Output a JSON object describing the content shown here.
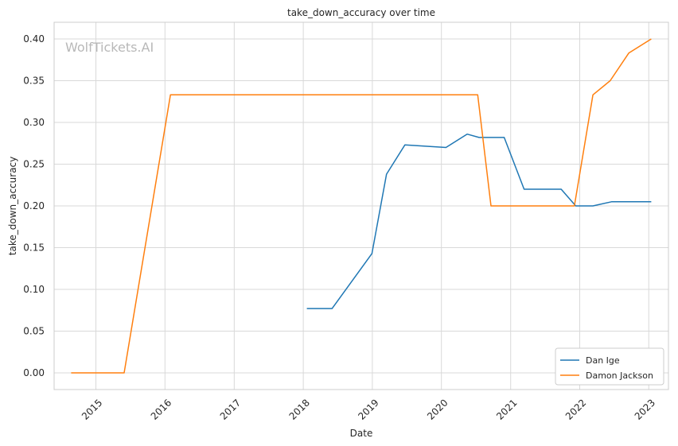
{
  "chart_data": {
    "type": "line",
    "title": "take_down_accuracy over time",
    "xlabel": "Date",
    "ylabel": "take_down_accuracy",
    "watermark": "WolfTickets.AI",
    "x_ticks": [
      "2015",
      "2016",
      "2017",
      "2018",
      "2019",
      "2020",
      "2021",
      "2022",
      "2023"
    ],
    "y_ticks": [
      "0.00",
      "0.05",
      "0.10",
      "0.15",
      "0.20",
      "0.25",
      "0.30",
      "0.35",
      "0.40"
    ],
    "xlim": [
      "2014-05-25",
      "2023-04-15"
    ],
    "ylim": [
      -0.02,
      0.42
    ],
    "grid": true,
    "legend_position": "lower-right",
    "series": [
      {
        "name": "Dan Ige",
        "color": "#1f77b4",
        "points": [
          {
            "x": "2018-01-20",
            "y": 0.077
          },
          {
            "x": "2018-06-02",
            "y": 0.077
          },
          {
            "x": "2018-12-30",
            "y": 0.143
          },
          {
            "x": "2019-03-17",
            "y": 0.238
          },
          {
            "x": "2019-06-22",
            "y": 0.273
          },
          {
            "x": "2020-01-25",
            "y": 0.27
          },
          {
            "x": "2020-05-16",
            "y": 0.286
          },
          {
            "x": "2020-07-18",
            "y": 0.282
          },
          {
            "x": "2020-11-28",
            "y": 0.282
          },
          {
            "x": "2021-03-13",
            "y": 0.22
          },
          {
            "x": "2021-09-25",
            "y": 0.22
          },
          {
            "x": "2021-12-11",
            "y": 0.2
          },
          {
            "x": "2022-03-12",
            "y": 0.2
          },
          {
            "x": "2022-06-18",
            "y": 0.205
          },
          {
            "x": "2023-01-14",
            "y": 0.205
          }
        ]
      },
      {
        "name": "Damon Jackson",
        "color": "#ff7f0e",
        "points": [
          {
            "x": "2014-08-23",
            "y": 0.0
          },
          {
            "x": "2015-05-30",
            "y": 0.0
          },
          {
            "x": "2016-01-30",
            "y": 0.333
          },
          {
            "x": "2020-07-11",
            "y": 0.333
          },
          {
            "x": "2020-09-19",
            "y": 0.2
          },
          {
            "x": "2021-12-04",
            "y": 0.2
          },
          {
            "x": "2022-03-12",
            "y": 0.333
          },
          {
            "x": "2022-06-11",
            "y": 0.35
          },
          {
            "x": "2022-09-17",
            "y": 0.383
          },
          {
            "x": "2023-01-14",
            "y": 0.4
          }
        ]
      }
    ]
  }
}
